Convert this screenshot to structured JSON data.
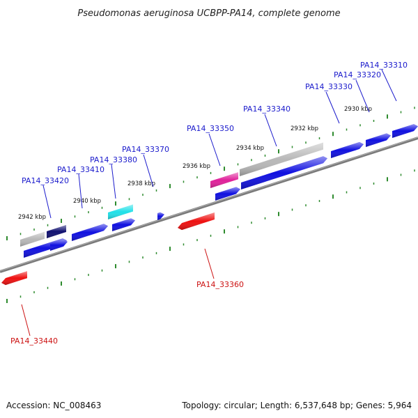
{
  "title": "Pseudomonas aeruginosa UCBPP-PA14, complete genome",
  "footer": {
    "accession": "Accession: NC_008463",
    "summary": "Topology: circular; Length: 6,537,648 bp; Genes: 5,964"
  },
  "colors": {
    "backbone": "#808080",
    "tick": "#2e8b2e",
    "label_top": "#1a1acc",
    "label_bottom": "#cc1111"
  },
  "kbp_labels": [
    "2942 kbp",
    "2940 kbp",
    "2938 kbp",
    "2936 kbp",
    "2934 kbp",
    "2932 kbp",
    "2930 kbp"
  ],
  "gene_labels_top": [
    "PA14_33420",
    "PA14_33410",
    "PA14_33380",
    "PA14_33370",
    "PA14_33350",
    "PA14_33340",
    "PA14_33330",
    "PA14_33320",
    "PA14_33310"
  ],
  "gene_labels_bottom": [
    "PA14_33360",
    "PA14_33440"
  ],
  "gene_colors": {
    "blue": "#1010e0",
    "navy": "#101070",
    "cyan": "#20e0e8",
    "gray": "#b8b8b8",
    "magenta": "#e0209a",
    "red": "#ee1010"
  }
}
